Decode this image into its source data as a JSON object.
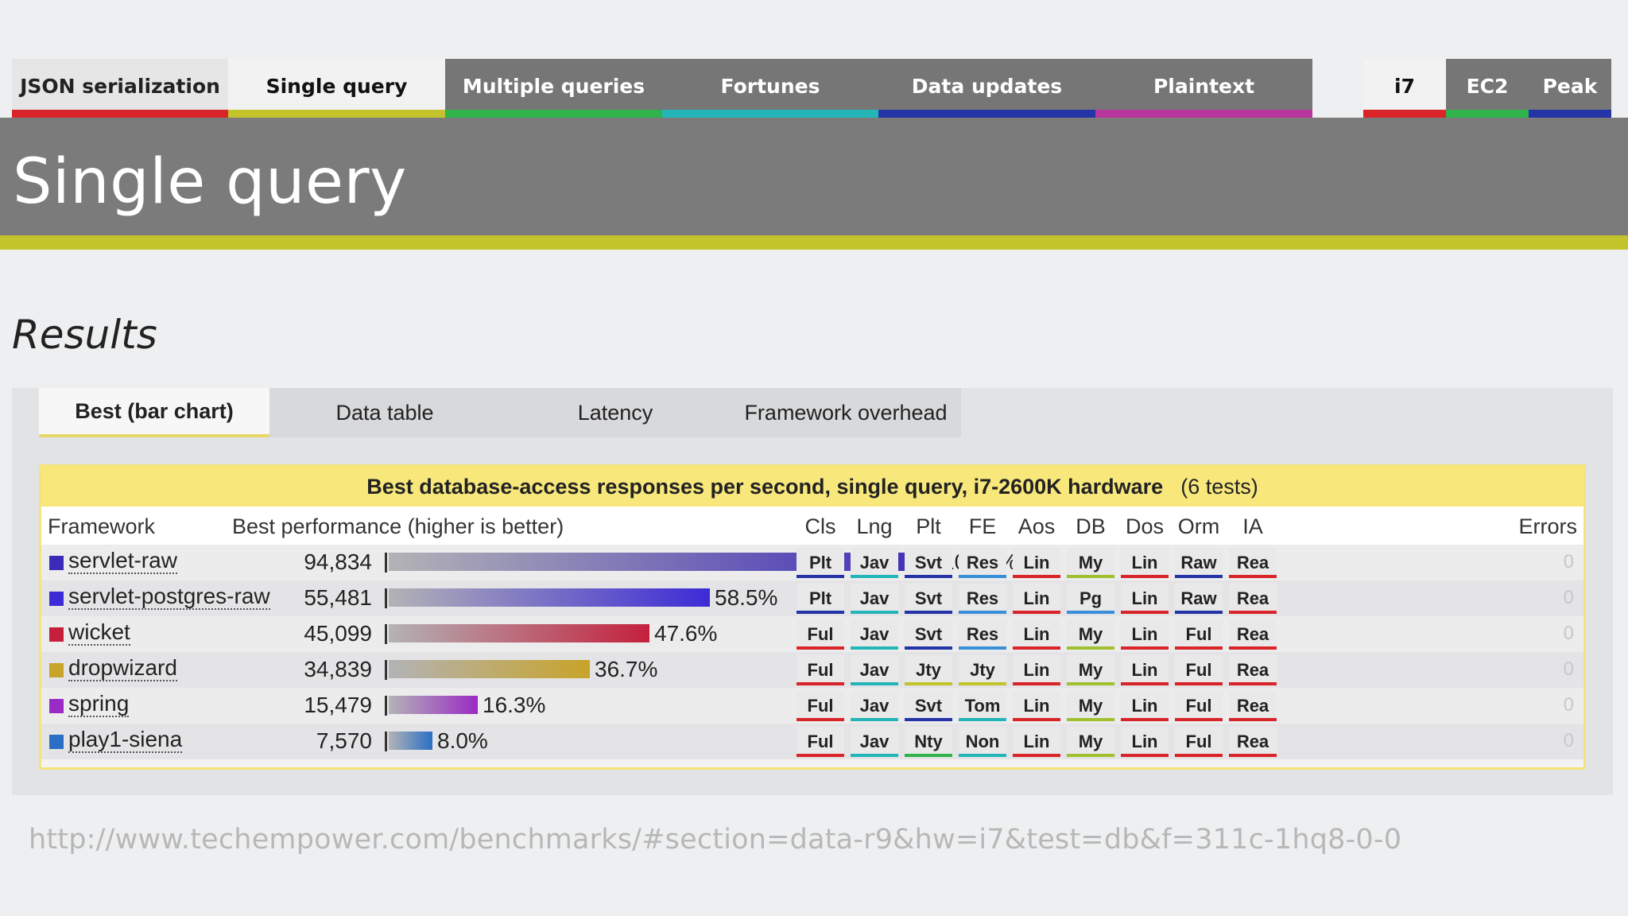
{
  "top_tabs": [
    {
      "label": "JSON serialization",
      "color": "#d9242a"
    },
    {
      "label": "Single query",
      "color": "#c3c32c"
    },
    {
      "label": "Multiple queries",
      "color": "#2fb34a"
    },
    {
      "label": "Fortunes",
      "color": "#24b5b8"
    },
    {
      "label": "Data updates",
      "color": "#2433a6"
    },
    {
      "label": "Plaintext",
      "color": "#b8359e"
    }
  ],
  "hardware_tabs": [
    {
      "label": "i7",
      "color": "#d9242a"
    },
    {
      "label": "EC2",
      "color": "#2fb34a"
    },
    {
      "label": "Peak",
      "color": "#2433a6"
    }
  ],
  "page_title": "Single query",
  "results_title": "Results",
  "sub_tabs": [
    "Best (bar chart)",
    "Data table",
    "Latency",
    "Framework overhead"
  ],
  "table": {
    "caption": "Best database-access responses per second, single query, i7-2600K hardware",
    "caption_count": "(6 tests)",
    "col_framework": "Framework",
    "col_performance": "Best performance (higher is better)",
    "col_errors": "Errors",
    "attr_headers": [
      "Cls",
      "Lng",
      "Plt",
      "FE",
      "Aos",
      "DB",
      "Dos",
      "Orm",
      "IA"
    ]
  },
  "chart_data": {
    "type": "bar",
    "title": "Best database-access responses per second, single query, i7-2600K hardware",
    "categories": [
      "servlet-raw",
      "servlet-postgres-raw",
      "wicket",
      "dropwizard",
      "spring",
      "play1-siena"
    ],
    "values": [
      94834,
      55481,
      45099,
      34839,
      15479,
      7570
    ],
    "value_labels": [
      "94,834",
      "55,481",
      "45,099",
      "34,839",
      "15,479",
      "7,570"
    ],
    "percent": [
      100.0,
      58.5,
      47.6,
      36.7,
      16.3,
      8.0
    ],
    "percent_labels": [
      "100.0%",
      "58.5%",
      "47.6%",
      "36.7%",
      "16.3%",
      "8.0%"
    ],
    "colors": [
      "#3c2bb8",
      "#3c2bd6",
      "#c4203c",
      "#c8a42a",
      "#9a2bc4",
      "#2a6fc4"
    ],
    "xlim": [
      0,
      100
    ]
  },
  "rows": [
    {
      "attrs": [
        "Plt",
        "Jav",
        "Svt",
        "Res",
        "Lin",
        "My",
        "Lin",
        "Raw",
        "Rea"
      ],
      "errors": "0"
    },
    {
      "attrs": [
        "Plt",
        "Jav",
        "Svt",
        "Res",
        "Lin",
        "Pg",
        "Lin",
        "Raw",
        "Rea"
      ],
      "errors": "0"
    },
    {
      "attrs": [
        "Ful",
        "Jav",
        "Svt",
        "Res",
        "Lin",
        "My",
        "Lin",
        "Ful",
        "Rea"
      ],
      "errors": "0"
    },
    {
      "attrs": [
        "Ful",
        "Jav",
        "Jty",
        "Jty",
        "Lin",
        "My",
        "Lin",
        "Ful",
        "Rea"
      ],
      "errors": "0"
    },
    {
      "attrs": [
        "Ful",
        "Jav",
        "Svt",
        "Tom",
        "Lin",
        "My",
        "Lin",
        "Ful",
        "Rea"
      ],
      "errors": "0"
    },
    {
      "attrs": [
        "Ful",
        "Jav",
        "Nty",
        "Non",
        "Lin",
        "My",
        "Lin",
        "Ful",
        "Rea"
      ],
      "errors": "0"
    }
  ],
  "badge_colors": {
    "Plt": "#2433a6",
    "Ful": "#d9242a",
    "Jav": "#24b5b8",
    "Svt": "#2433a6",
    "Jty": "#c3c32c",
    "Nty": "#2fb34a",
    "Res": "#3a8fd9",
    "Tom": "#24b5b8",
    "Non": "#24b5b8",
    "Lin": "#d9242a",
    "My": "#a0c030",
    "Pg": "#3a8fd9",
    "Raw": "#2433a6",
    "Rea": "#d9242a"
  },
  "footer_url": "http://www.techempower.com/benchmarks/#section=data-r9&hw=i7&test=db&f=311c-1hq8-0-0"
}
